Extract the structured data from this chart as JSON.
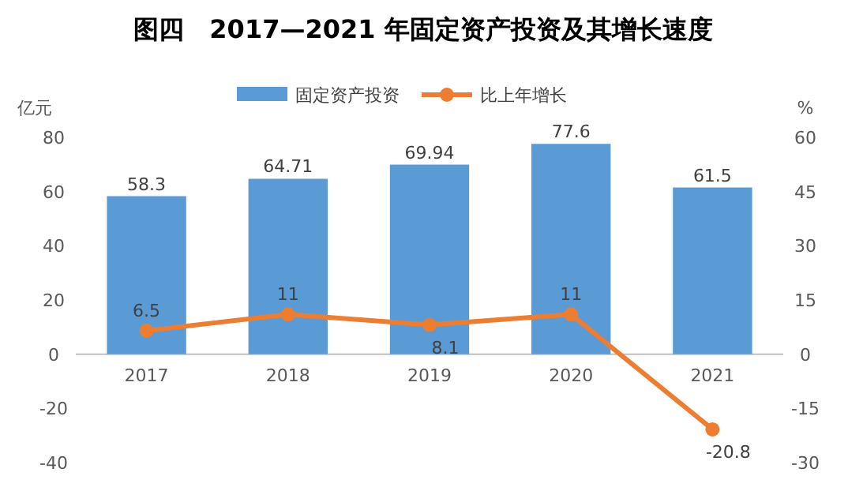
{
  "chart_data": {
    "type": "bar",
    "title": "图四　2017—2021 年固定资产投资及其增长速度",
    "categories": [
      "2017",
      "2018",
      "2019",
      "2020",
      "2021"
    ],
    "series": [
      {
        "name": "固定资产投资",
        "color": "#5b9bd5",
        "values": [
          58.3,
          64.71,
          69.94,
          77.6,
          61.5
        ]
      },
      {
        "name": "比上年增长",
        "type": "line",
        "axis": "y2",
        "color": "#ed7d31",
        "values": [
          6.5,
          11,
          8.1,
          11,
          -20.8
        ]
      }
    ],
    "ylabel": "亿元",
    "y2label": "%",
    "ylim": [
      -40,
      80
    ],
    "yticks": [
      -40,
      -20,
      0,
      20,
      40,
      60,
      80
    ],
    "y2lim": [
      -30,
      60
    ],
    "y2ticks": [
      -30,
      -15,
      0,
      15,
      30,
      45,
      60
    ],
    "data_labels": true,
    "legend": "top",
    "marker": "circle",
    "grid": false
  }
}
